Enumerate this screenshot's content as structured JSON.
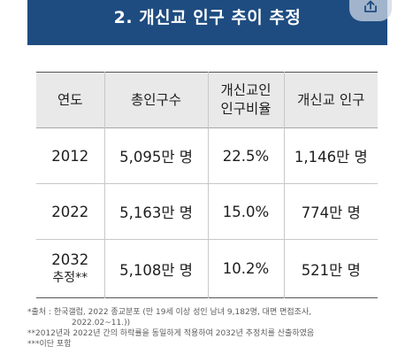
{
  "banner": {
    "title": "2. 개신교 인구 추이 추정",
    "corner_icon": "share-icon"
  },
  "table": {
    "headers": {
      "year": "연도",
      "total": "총인구수",
      "ratio_line1": "개신교인",
      "ratio_line2": "인구비율",
      "population": "개신교 인구"
    },
    "rows": [
      {
        "year": "2012",
        "year_note": "",
        "total": "5,095만 명",
        "ratio": "22.5%",
        "population": "1,146만 명"
      },
      {
        "year": "2022",
        "year_note": "",
        "total": "5,163만 명",
        "ratio": "15.0%",
        "population": "774만 명"
      },
      {
        "year": "2032",
        "year_note": "추정**",
        "total": "5,108만 명",
        "ratio": "10.2%",
        "population": "521만 명"
      }
    ],
    "highlight_color": "#c8431f"
  },
  "notes": {
    "source_line1": "*출처 : 한국갤럽, 2022 종교분포 (만 19세 이상 성인 남녀 9,182명, 대면 면접조사,",
    "source_line2": "2022.02~11.))",
    "method": "**2012년과 2022년 간의 하락률을 동일하게 적용하여 2032년 추정치를 산출하였음",
    "heresy": "***이단 포함"
  },
  "colors": {
    "banner": "#1e4c80",
    "header_bg": "#e9e9e9"
  }
}
